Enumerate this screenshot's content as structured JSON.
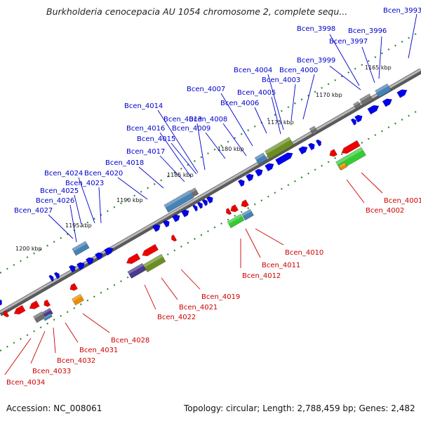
{
  "title": "Burkholderia cenocepacia AU 1054 chromosome 2, complete sequ...",
  "footer": {
    "accession": "Accession: NC_008061",
    "summary": "Topology: circular; Length: 2,788,459 bp; Genes: 2,482"
  },
  "colors": {
    "backbone": "#8c8c8c",
    "tick_dot": "#2e8b2e",
    "upper_label": "#0000cc",
    "lower_label": "#cc0000",
    "forward_gene": "#0000ee",
    "reverse_gene": "#ee0000",
    "feature_steelblue": "#4682b4",
    "feature_olive": "#6b8e23",
    "feature_purple": "#4b3a8c",
    "feature_gray": "#6e6e6e",
    "feature_orange": "#ee8c00",
    "feature_green": "#33cc33"
  },
  "scale_labels": [
    "1165 kbp",
    "1170 kbp",
    "1175 kbp",
    "1180 kbp",
    "1185 kbp",
    "1190 kbp",
    "1195 kbp",
    "1200 kbp"
  ],
  "upper_genes": [
    "Bcen_3993",
    "Bcen_3996",
    "Bcen_3997",
    "Bcen_3998",
    "Bcen_3999",
    "Bcen_4000",
    "Bcen_4003",
    "Bcen_4004",
    "Bcen_4005",
    "Bcen_4006",
    "Bcen_4007",
    "Bcen_4008",
    "Bcen_4009",
    "Bcen_4013",
    "Bcen_4014",
    "Bcen_4015",
    "Bcen_4016",
    "Bcen_4017",
    "Bcen_4018",
    "Bcen_4020",
    "Bcen_4023",
    "Bcen_4024",
    "Bcen_4025",
    "Bcen_4026",
    "Bcen_4027"
  ],
  "lower_genes": [
    "Bcen_4001",
    "Bcen_4002",
    "Bcen_4010",
    "Bcen_4011",
    "Bcen_4012",
    "Bcen_4019",
    "Bcen_4021",
    "Bcen_4022",
    "Bcen_4028",
    "Bcen_4031",
    "Bcen_4032",
    "Bcen_4033",
    "Bcen_4034"
  ]
}
